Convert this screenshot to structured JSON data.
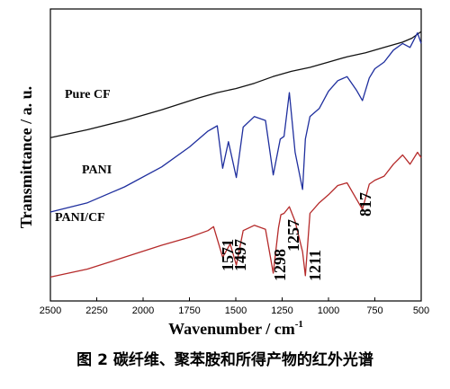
{
  "chart_data": {
    "type": "line",
    "ylabel": "Transmittance / a. u.",
    "xlabel": "Wavenumber / cm",
    "xlabel_superscript": "-1",
    "xlim": [
      2500,
      500
    ],
    "x_reversed": true,
    "x_ticks": [
      2500,
      2250,
      2000,
      1750,
      1500,
      1250,
      1000,
      750,
      500
    ],
    "y_ticks_shown": false,
    "grid": false,
    "legend": "inline labels beside curves",
    "series": [
      {
        "name": "Pure CF",
        "color": "#111111",
        "x": [
          2500,
          2300,
          2100,
          1900,
          1700,
          1600,
          1500,
          1400,
          1300,
          1200,
          1100,
          1000,
          900,
          800,
          700,
          600,
          550,
          520,
          500
        ],
        "y": [
          7.3,
          7.9,
          8.6,
          9.4,
          10.3,
          10.7,
          11.0,
          11.4,
          11.9,
          12.3,
          12.6,
          13.0,
          13.4,
          13.7,
          14.1,
          14.5,
          14.8,
          15.1,
          15.3
        ]
      },
      {
        "name": "PANI",
        "color": "#1f2f9e",
        "x": [
          2500,
          2300,
          2100,
          1900,
          1750,
          1650,
          1600,
          1571,
          1540,
          1497,
          1460,
          1400,
          1340,
          1298,
          1260,
          1240,
          1211,
          1180,
          1140,
          1125,
          1100,
          1050,
          1000,
          950,
          900,
          850,
          817,
          780,
          750,
          700,
          650,
          600,
          560,
          520,
          500
        ],
        "y": [
          1.7,
          2.4,
          3.6,
          5.1,
          6.6,
          7.8,
          8.2,
          5.0,
          7.0,
          4.3,
          8.1,
          8.9,
          8.6,
          4.5,
          7.2,
          7.4,
          10.7,
          6.2,
          3.4,
          7.2,
          8.9,
          9.5,
          10.8,
          11.6,
          11.9,
          10.9,
          10.1,
          11.8,
          12.5,
          13.0,
          13.9,
          14.4,
          14.1,
          15.2,
          14.4
        ]
      },
      {
        "name": "PANI/CF",
        "color": "#b52a2a",
        "x": [
          2500,
          2300,
          2100,
          1900,
          1750,
          1650,
          1620,
          1571,
          1530,
          1497,
          1460,
          1400,
          1340,
          1298,
          1270,
          1257,
          1240,
          1211,
          1180,
          1140,
          1125,
          1100,
          1050,
          1000,
          950,
          900,
          850,
          817,
          780,
          750,
          700,
          650,
          600,
          560,
          520,
          500
        ],
        "y": [
          -3.2,
          -2.6,
          -1.7,
          -0.8,
          -0.2,
          0.3,
          0.6,
          -1.7,
          -0.7,
          -2.3,
          0.3,
          0.7,
          0.4,
          -2.9,
          0.5,
          1.5,
          1.6,
          2.1,
          1.0,
          -1.3,
          -3.1,
          1.6,
          2.4,
          3.0,
          3.7,
          3.9,
          2.7,
          1.9,
          3.8,
          4.1,
          4.4,
          5.3,
          6.0,
          5.3,
          6.2,
          5.8
        ]
      }
    ],
    "peak_labels": [
      "1571",
      "1497",
      "1298",
      "1257",
      "1211",
      "817"
    ]
  },
  "caption": "图 2  碳纤维、聚苯胺和所得产物的红外光谱"
}
